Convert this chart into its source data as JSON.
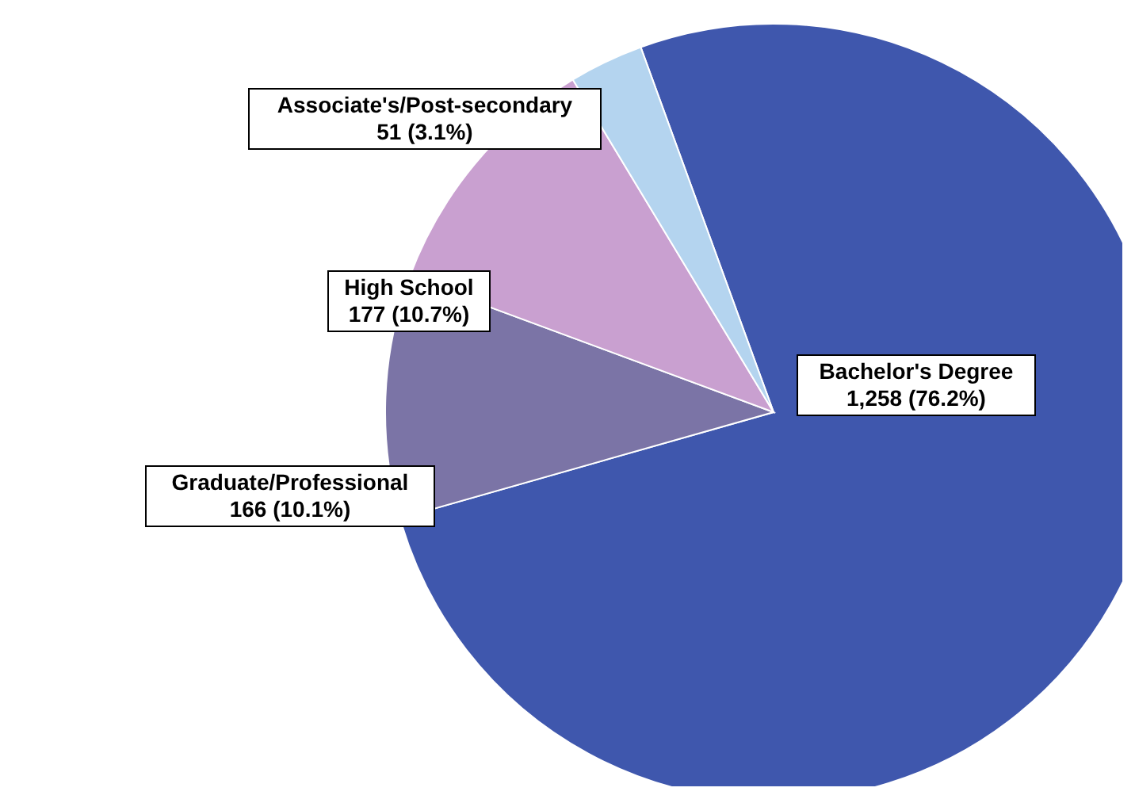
{
  "chart_data": {
    "type": "pie",
    "categories": [
      "Bachelor's Degree",
      "Graduate/Professional",
      "High School",
      "Associate's/Post-secondary"
    ],
    "values": [
      1258,
      166,
      177,
      51
    ],
    "colors": [
      "#3f57ad",
      "#7b74a6",
      "#c9a0d0",
      "#b4d4ef"
    ],
    "value_labels": [
      "1,258 (76.2%)",
      "166 (10.1%)",
      "177 (10.7%)",
      "51 (3.1%)"
    ]
  }
}
